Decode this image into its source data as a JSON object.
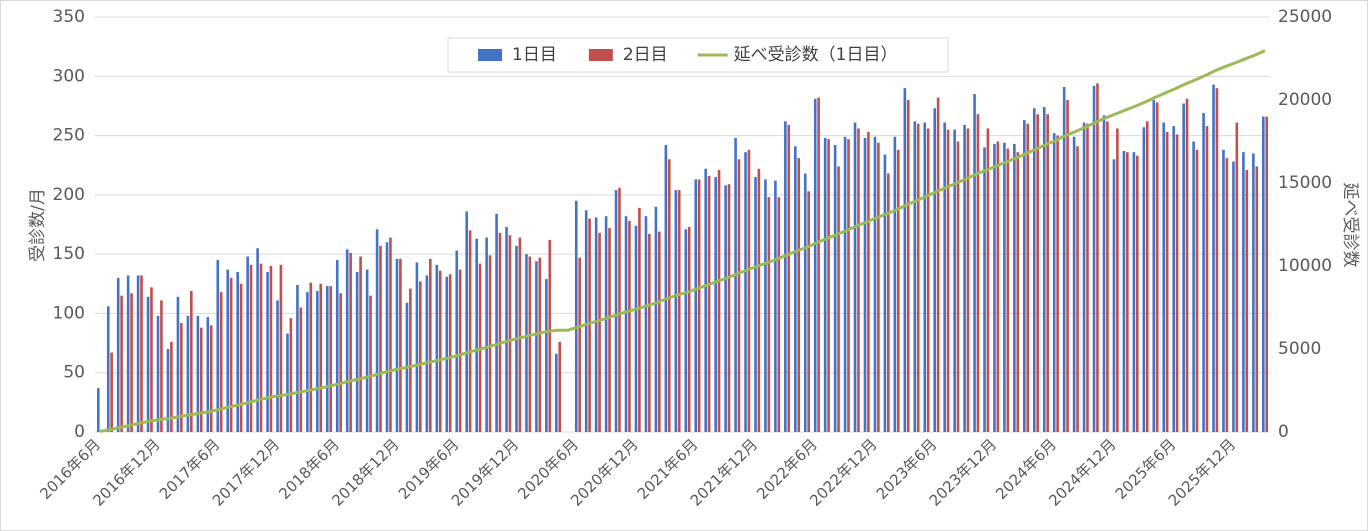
{
  "chart_data": {
    "type": "bar",
    "ylabel": "受診数/月",
    "y2label": "延べ受診数",
    "categories": [
      "2016年6月",
      null,
      null,
      null,
      null,
      null,
      "2016年12月",
      null,
      null,
      null,
      null,
      null,
      "2017年6月",
      null,
      null,
      null,
      null,
      null,
      "2017年12月",
      null,
      null,
      null,
      null,
      null,
      "2018年6月",
      null,
      null,
      null,
      null,
      null,
      "2018年12月",
      null,
      null,
      null,
      null,
      null,
      "2019年6月",
      null,
      null,
      null,
      null,
      null,
      "2019年12月",
      null,
      null,
      null,
      null,
      null,
      "2020年6月",
      null,
      null,
      null,
      null,
      null,
      "2020年12月",
      null,
      null,
      null,
      null,
      null,
      "2021年6月",
      null,
      null,
      null,
      null,
      null,
      "2021年12月",
      null,
      null,
      null,
      null,
      null,
      "2022年6月",
      null,
      null,
      null,
      null,
      null,
      "2022年12月",
      null,
      null,
      null,
      null,
      null,
      "2023年6月",
      null,
      null,
      null,
      null,
      null,
      "2023年12月",
      null,
      null,
      null,
      null,
      null,
      "2024年6月",
      null,
      null,
      null,
      null,
      null,
      "2024年12月",
      null,
      null,
      null,
      null,
      null,
      "2025年6月",
      null,
      null,
      null,
      null,
      null,
      "2025年12月",
      null,
      null,
      null
    ],
    "series": [
      {
        "name": "1日目",
        "color": "#4472c4",
        "values": [
          37,
          106,
          130,
          132,
          132,
          114,
          98,
          70,
          114,
          98,
          98,
          97,
          145,
          137,
          135,
          148,
          155,
          135,
          111,
          83,
          124,
          118,
          119,
          123,
          145,
          154,
          135,
          137,
          171,
          160,
          146,
          109,
          143,
          132,
          141,
          131,
          153,
          186,
          163,
          164,
          184,
          173,
          157,
          150,
          144,
          129,
          66,
          null,
          195,
          187,
          181,
          182,
          204,
          182,
          174,
          182,
          190,
          242,
          204,
          171,
          213,
          222,
          215,
          208,
          248,
          236,
          215,
          213,
          212,
          262,
          241,
          218,
          281,
          248,
          242,
          249,
          261,
          248,
          249,
          234,
          249,
          290,
          262,
          261,
          273,
          261,
          255,
          259,
          285,
          240,
          243,
          244,
          243,
          263,
          273,
          274,
          252,
          291,
          249,
          261,
          292,
          267,
          230,
          237,
          236,
          257,
          280,
          261,
          258,
          277,
          245,
          269,
          293,
          238,
          228,
          236,
          235,
          266
        ]
      },
      {
        "name": "2日目",
        "color": "#c0504d",
        "values": [
          null,
          67,
          115,
          117,
          132,
          122,
          111,
          76,
          92,
          119,
          88,
          90,
          118,
          130,
          125,
          141,
          142,
          140,
          141,
          96,
          105,
          126,
          125,
          123,
          117,
          151,
          148,
          115,
          157,
          164,
          146,
          121,
          127,
          146,
          136,
          133,
          137,
          170,
          142,
          149,
          168,
          166,
          164,
          148,
          147,
          162,
          76,
          null,
          147,
          180,
          168,
          172,
          206,
          178,
          189,
          167,
          169,
          230,
          204,
          173,
          213,
          216,
          221,
          209,
          230,
          238,
          222,
          198,
          198,
          259,
          231,
          203,
          282,
          247,
          224,
          247,
          256,
          253,
          244,
          218,
          238,
          280,
          260,
          256,
          282,
          255,
          245,
          256,
          268,
          256,
          245,
          239,
          236,
          260,
          268,
          268,
          250,
          280,
          241,
          260,
          294,
          262,
          256,
          236,
          233,
          262,
          278,
          253,
          251,
          281,
          238,
          258,
          290,
          231,
          261,
          221,
          224,
          266
        ]
      },
      {
        "name": "延べ受診数（1日目）",
        "color": "#9bbb59",
        "type": "line",
        "axis": "y2",
        "values": [
          37,
          143,
          273,
          405,
          537,
          651,
          749,
          819,
          933,
          1031,
          1129,
          1226,
          1371,
          1508,
          1643,
          1791,
          1946,
          2081,
          2192,
          2275,
          2399,
          2517,
          2636,
          2759,
          2904,
          3058,
          3193,
          3330,
          3501,
          3661,
          3807,
          3916,
          4059,
          4191,
          4332,
          4463,
          4616,
          4802,
          4965,
          5129,
          5313,
          5486,
          5643,
          5793,
          5937,
          6066,
          6132,
          6132,
          6327,
          6514,
          6695,
          6877,
          7081,
          7263,
          7437,
          7619,
          7809,
          8051,
          8255,
          8426,
          8639,
          8861,
          9076,
          9284,
          9532,
          9768,
          9983,
          10196,
          10408,
          10670,
          10911,
          11129,
          11410,
          11658,
          11900,
          12149,
          12410,
          12658,
          12907,
          13141,
          13390,
          13680,
          13942,
          14203,
          14476,
          14737,
          14992,
          15251,
          15536,
          15776,
          16019,
          16263,
          16506,
          16769,
          17042,
          17316,
          17568,
          17859,
          18108,
          18369,
          18661,
          18928,
          19158,
          19395,
          19631,
          19888,
          20168,
          20429,
          20687,
          20964,
          21209,
          21478,
          21771,
          22009,
          22237,
          22473,
          22708,
          22974
        ]
      }
    ],
    "ylim": [
      0,
      350
    ],
    "yticks": [
      0,
      50,
      100,
      150,
      200,
      250,
      300,
      350
    ],
    "y2lim": [
      0,
      25000
    ],
    "y2ticks": [
      0,
      5000,
      10000,
      15000,
      20000,
      25000
    ],
    "grid": true,
    "legend": "top"
  }
}
